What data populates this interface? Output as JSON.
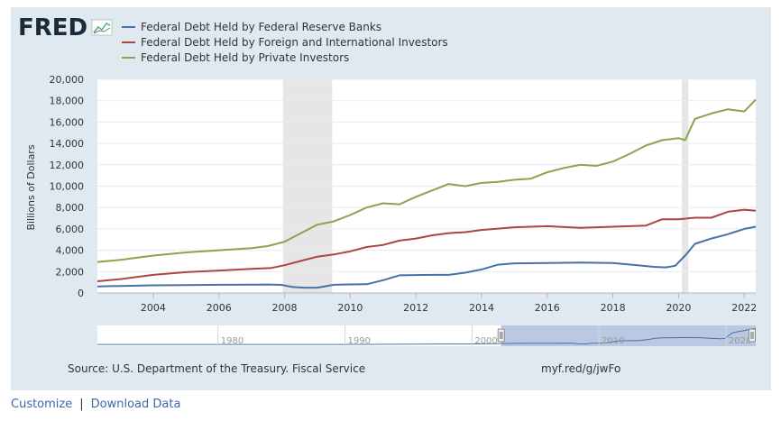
{
  "brand": {
    "logo_text": "FRED"
  },
  "chart_data": {
    "type": "line",
    "title": "",
    "xlabel": "",
    "ylabel": "Billions of Dollars",
    "xlim": [
      2002.3,
      2022.35
    ],
    "ylim": [
      0,
      20000
    ],
    "y_ticks": [
      0,
      2000,
      4000,
      6000,
      8000,
      10000,
      12000,
      14000,
      16000,
      18000,
      20000
    ],
    "y_tick_labels": [
      "0",
      "2,000",
      "4,000",
      "6,000",
      "8,000",
      "10,000",
      "12,000",
      "14,000",
      "16,000",
      "18,000",
      "20,000"
    ],
    "x_ticks": [
      2004,
      2006,
      2008,
      2010,
      2012,
      2014,
      2016,
      2018,
      2020,
      2022
    ],
    "x_tick_labels": [
      "2004",
      "2006",
      "2008",
      "2010",
      "2012",
      "2014",
      "2016",
      "2018",
      "2020",
      "2022"
    ],
    "recessions": [
      [
        2007.95,
        2009.45
      ],
      [
        2020.1,
        2020.3
      ]
    ],
    "series": [
      {
        "name": "Federal Debt Held by Federal Reserve Banks",
        "color": "#4572a7",
        "x": [
          2002.3,
          2003,
          2004,
          2005,
          2006,
          2007,
          2007.5,
          2007.9,
          2008.25,
          2008.6,
          2009,
          2009.5,
          2010,
          2010.5,
          2011,
          2011.5,
          2012,
          2012.5,
          2013,
          2013.5,
          2014,
          2014.5,
          2015,
          2016,
          2017,
          2018,
          2018.75,
          2019.25,
          2019.6,
          2019.9,
          2020.2,
          2020.5,
          2021,
          2021.5,
          2022,
          2022.35
        ],
        "values": [
          620,
          660,
          720,
          740,
          770,
          780,
          790,
          760,
          560,
          500,
          500,
          770,
          800,
          820,
          1200,
          1650,
          1680,
          1700,
          1700,
          1900,
          2200,
          2650,
          2780,
          2800,
          2850,
          2800,
          2600,
          2450,
          2400,
          2550,
          3500,
          4600,
          5100,
          5500,
          6000,
          6200
        ]
      },
      {
        "name": "Federal Debt Held by Foreign and International Investors",
        "color": "#aa4643",
        "x": [
          2002.3,
          2003,
          2004,
          2005,
          2006,
          2007,
          2007.6,
          2008,
          2008.5,
          2009,
          2009.5,
          2010,
          2010.5,
          2011,
          2011.5,
          2012,
          2012.5,
          2013,
          2013.5,
          2014,
          2015,
          2016,
          2017,
          2018,
          2019,
          2019.5,
          2020,
          2020.5,
          2021,
          2021.5,
          2022,
          2022.35
        ],
        "values": [
          1100,
          1300,
          1700,
          1950,
          2100,
          2250,
          2350,
          2600,
          3000,
          3400,
          3600,
          3900,
          4300,
          4500,
          4900,
          5100,
          5400,
          5600,
          5700,
          5900,
          6150,
          6250,
          6100,
          6200,
          6300,
          6900,
          6900,
          7050,
          7050,
          7600,
          7800,
          7700
        ]
      },
      {
        "name": "Federal Debt Held by Private Investors",
        "color": "#89a54e",
        "x": [
          2002.3,
          2003,
          2004,
          2005,
          2006,
          2007,
          2007.5,
          2008,
          2008.5,
          2009,
          2009.5,
          2010,
          2010.5,
          2011,
          2011.5,
          2012,
          2012.5,
          2013,
          2013.5,
          2014,
          2014.5,
          2015,
          2015.5,
          2016,
          2016.5,
          2017,
          2017.5,
          2018,
          2018.5,
          2019,
          2019.5,
          2020,
          2020.2,
          2020.5,
          2021,
          2021.5,
          2022,
          2022.35
        ],
        "values": [
          2900,
          3100,
          3500,
          3800,
          4000,
          4200,
          4400,
          4800,
          5600,
          6400,
          6700,
          7300,
          8000,
          8400,
          8300,
          9000,
          9600,
          10200,
          10000,
          10300,
          10400,
          10600,
          10700,
          11300,
          11700,
          12000,
          11900,
          12300,
          13000,
          13800,
          14300,
          14500,
          14300,
          16300,
          16800,
          17200,
          17000,
          18100
        ]
      }
    ]
  },
  "navigator": {
    "x_labels": [
      "1980",
      "1990",
      "2000",
      "2010",
      "2020"
    ],
    "selection": [
      2002.3,
      2022.35
    ]
  },
  "source_text": "Source: U.S. Department of the Treasury. Fiscal Service",
  "short_url": "myf.red/g/jwFo",
  "links": {
    "customize": "Customize",
    "separator": "|",
    "download": "Download Data"
  }
}
